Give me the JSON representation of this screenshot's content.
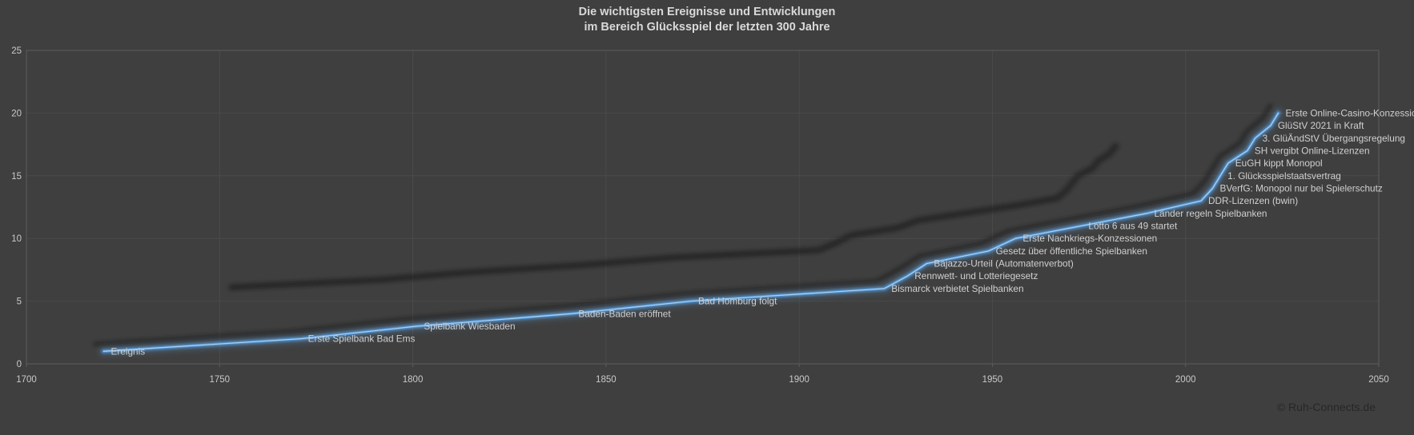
{
  "title": {
    "line1": "Die wichtigsten Ereignisse und Entwicklungen",
    "line2": "im Bereich Glücksspiel der letzten 300 Jahre"
  },
  "footer": {
    "copyright": "© Ruh-Connects.de"
  },
  "colors": {
    "background": "#3f3f3f",
    "grid": "#4a4a4a",
    "axis": "#5c5c5c",
    "tick_text": "#c9c9c9",
    "label_text": "#d0d0d0",
    "title_text": "#d9d9d9",
    "line_glow": "#5b9bd5",
    "line_main": "#4f8fcc",
    "line_core": "#aed2f0",
    "shadow": "#161616",
    "copyright_text": "#272727"
  },
  "chart_data": {
    "type": "line",
    "title": "Die wichtigsten Ereignisse und Entwicklungen im Bereich Glücksspiel der letzten 300 Jahre",
    "xlabel": "",
    "ylabel": "",
    "xlim": [
      1700,
      2050
    ],
    "ylim": [
      0,
      25
    ],
    "x_ticks": [
      1700,
      1750,
      1800,
      1850,
      1900,
      1950,
      2000,
      2050
    ],
    "y_ticks": [
      0,
      5,
      10,
      15,
      20,
      25
    ],
    "grid": true,
    "legend": "none",
    "series_name": "Ereignis",
    "points": [
      {
        "year": 1720,
        "value": 1,
        "label": "Ereignis"
      },
      {
        "year": 1771,
        "value": 2,
        "label": "Erste Spielbank Bad Ems"
      },
      {
        "year": 1801,
        "value": 3,
        "label": "Spielbank Wiesbaden"
      },
      {
        "year": 1841,
        "value": 4,
        "label": "Baden-Baden eröffnet"
      },
      {
        "year": 1872,
        "value": 5,
        "label": "Bad Homburg folgt"
      },
      {
        "year": 1922,
        "value": 6,
        "label": "Bismarck verbietet Spielbanken"
      },
      {
        "year": 1928,
        "value": 7,
        "label": "Rennwett- und Lotteriegesetz"
      },
      {
        "year": 1933,
        "value": 8,
        "label": "Bajazzo-Urteil (Automatenverbot)"
      },
      {
        "year": 1949,
        "value": 9,
        "label": "Gesetz über öffentliche Spielbanken"
      },
      {
        "year": 1956,
        "value": 10,
        "label": "Erste Nachkriegs-Konzessionen"
      },
      {
        "year": 1973,
        "value": 11,
        "label": "Lotto 6 aus 49 startet"
      },
      {
        "year": 1990,
        "value": 12,
        "label": "Länder regeln Spielbanken"
      },
      {
        "year": 2004,
        "value": 13,
        "label": "DDR-Lizenzen (bwin)"
      },
      {
        "year": 2007,
        "value": 14,
        "label": "BVerfG: Monopol nur bei Spielerschutz"
      },
      {
        "year": 2009,
        "value": 15,
        "label": "1. Glücksspielstaatsvertrag"
      },
      {
        "year": 2011,
        "value": 16,
        "label": "EuGH kippt Monopol"
      },
      {
        "year": 2016,
        "value": 17,
        "label": "SH vergibt Online-Lizenzen"
      },
      {
        "year": 2018,
        "value": 18,
        "label": "3. GlüÄndStV Übergangsregelung"
      },
      {
        "year": 2022,
        "value": 19,
        "label": "GlüStV 2021 in Kraft"
      },
      {
        "year": 2024,
        "value": 20,
        "label": "Erste Online-Casino-Konzessionen"
      }
    ]
  }
}
